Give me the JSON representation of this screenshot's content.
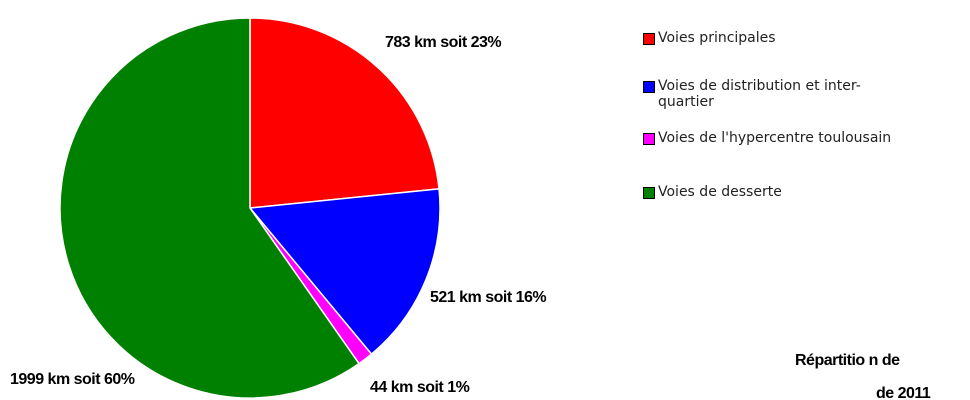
{
  "chart_data": {
    "type": "pie",
    "title": [
      "Répartitio n de",
      "de 2011"
    ],
    "categories": [
      "Voies principales",
      "Voies de distribution et inter- quartier",
      "Voies de l'hypercentre toulousain",
      "Voies de desserte"
    ],
    "values": [
      783,
      521,
      44,
      1999
    ],
    "value_labels": [
      "783 km soit 23%",
      "521 km soit 16%",
      "44 km soit 1%",
      "1999 km soit 60%"
    ],
    "colors": [
      "#ff0000",
      "#0000ff",
      "#ff00ff",
      "#008000"
    ],
    "legend": "right"
  }
}
